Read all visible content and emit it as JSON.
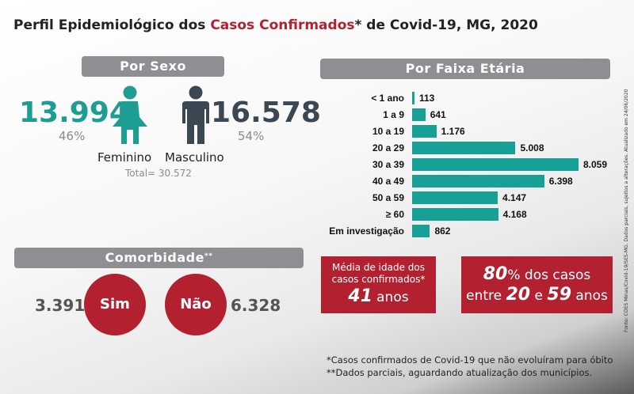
{
  "header": {
    "title_pre": "Perfil Epidemiológico dos ",
    "title_hl": "Casos Confirmados",
    "title_post": "* de Covid-19, MG, 2020"
  },
  "sex_section": {
    "title": "Por Sexo",
    "female": {
      "value": "13.994",
      "pct": "46%",
      "label": "Feminino"
    },
    "male": {
      "value": "16.578",
      "pct": "54%",
      "label": "Masculino"
    },
    "total": "Total= 30.572"
  },
  "age_section": {
    "title": "Por Faixa Etária"
  },
  "comorbidity": {
    "title": "Comorbidade",
    "title_mark": "**",
    "yes_value": "3.391",
    "yes_label": "Sim",
    "no_label": "Não",
    "no_value": "6.328"
  },
  "avg_box": {
    "line1": "Média de idade dos",
    "line2": "casos confirmados*",
    "number": "41",
    "unit": "anos"
  },
  "pct_box": {
    "pct_num": "80",
    "pct_rest": "% dos casos",
    "between_pre": "entre ",
    "from": "20",
    "mid": " e ",
    "to": "59",
    "post": " anos"
  },
  "footnotes": {
    "f1": "*Casos confirmados de Covid-19 que não evoluíram para óbito",
    "f2": "**Dados parciais, aguardando atualização dos municípios."
  },
  "source": "Fonte: COES Minas/Covid-19/SES-MG. Dados parciais, sujeitos a alterações. Atualizado em 24/06/2020",
  "colors": {
    "accent_red": "#b3202f",
    "teal": "#17a196",
    "slate": "#3b4752",
    "pill_gray": "#8e8e93"
  },
  "icons": {
    "female": "female-person-icon",
    "male": "male-person-icon"
  },
  "chart_data": {
    "type": "bar",
    "orientation": "horizontal",
    "title": "Por Faixa Etária",
    "categories": [
      "< 1 ano",
      "1 a 9",
      "10 a 19",
      "20 a 29",
      "30 a 39",
      "40 a 49",
      "50 a 59",
      "≥ 60",
      "Em investigação"
    ],
    "values": [
      113,
      641,
      1176,
      5008,
      8059,
      6398,
      4147,
      4168,
      862
    ],
    "value_labels": [
      "113",
      "641",
      "1.176",
      "5.008",
      "8.059",
      "6.398",
      "4.147",
      "4.168",
      "862"
    ],
    "xlim": [
      0,
      8059
    ],
    "grid": false
  }
}
